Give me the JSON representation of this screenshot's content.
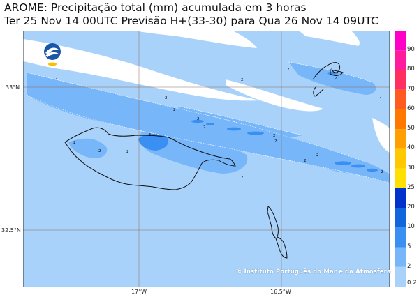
{
  "header": {
    "line1": "AROME: Precipitação total (mm) acumulada em 3 horas",
    "line2": "Ter 25 Nov 14 00UTC Previsão H+(33-30) para Qua 26 Nov 14 09UTC"
  },
  "axes": {
    "lat_labels": [
      "33°N",
      "32.5°N"
    ],
    "lon_labels": [
      "17°W",
      "16.5°W"
    ]
  },
  "colorbar": {
    "labels": [
      "0.2",
      "2",
      "5",
      "10",
      "20",
      "25",
      "30",
      "40",
      "50",
      "60",
      "70",
      "80",
      "90"
    ],
    "colors": [
      "#a9d2fb",
      "#78b6fa",
      "#3a8ff3",
      "#1166dd",
      "#0033cc",
      "#ffe000",
      "#ffc800",
      "#ffa000",
      "#ff7800",
      "#ff5a20",
      "#ff3060",
      "#ff1c9c",
      "#ff00c8"
    ]
  },
  "map": {
    "contour_labels": [
      "2",
      "5"
    ],
    "land_color": "#ffffff",
    "coast_color": "#111111"
  },
  "logo": {
    "icon": "ipma-logo-icon"
  },
  "copyright": "© Instituto Português do Mar e da Atmosfera"
}
